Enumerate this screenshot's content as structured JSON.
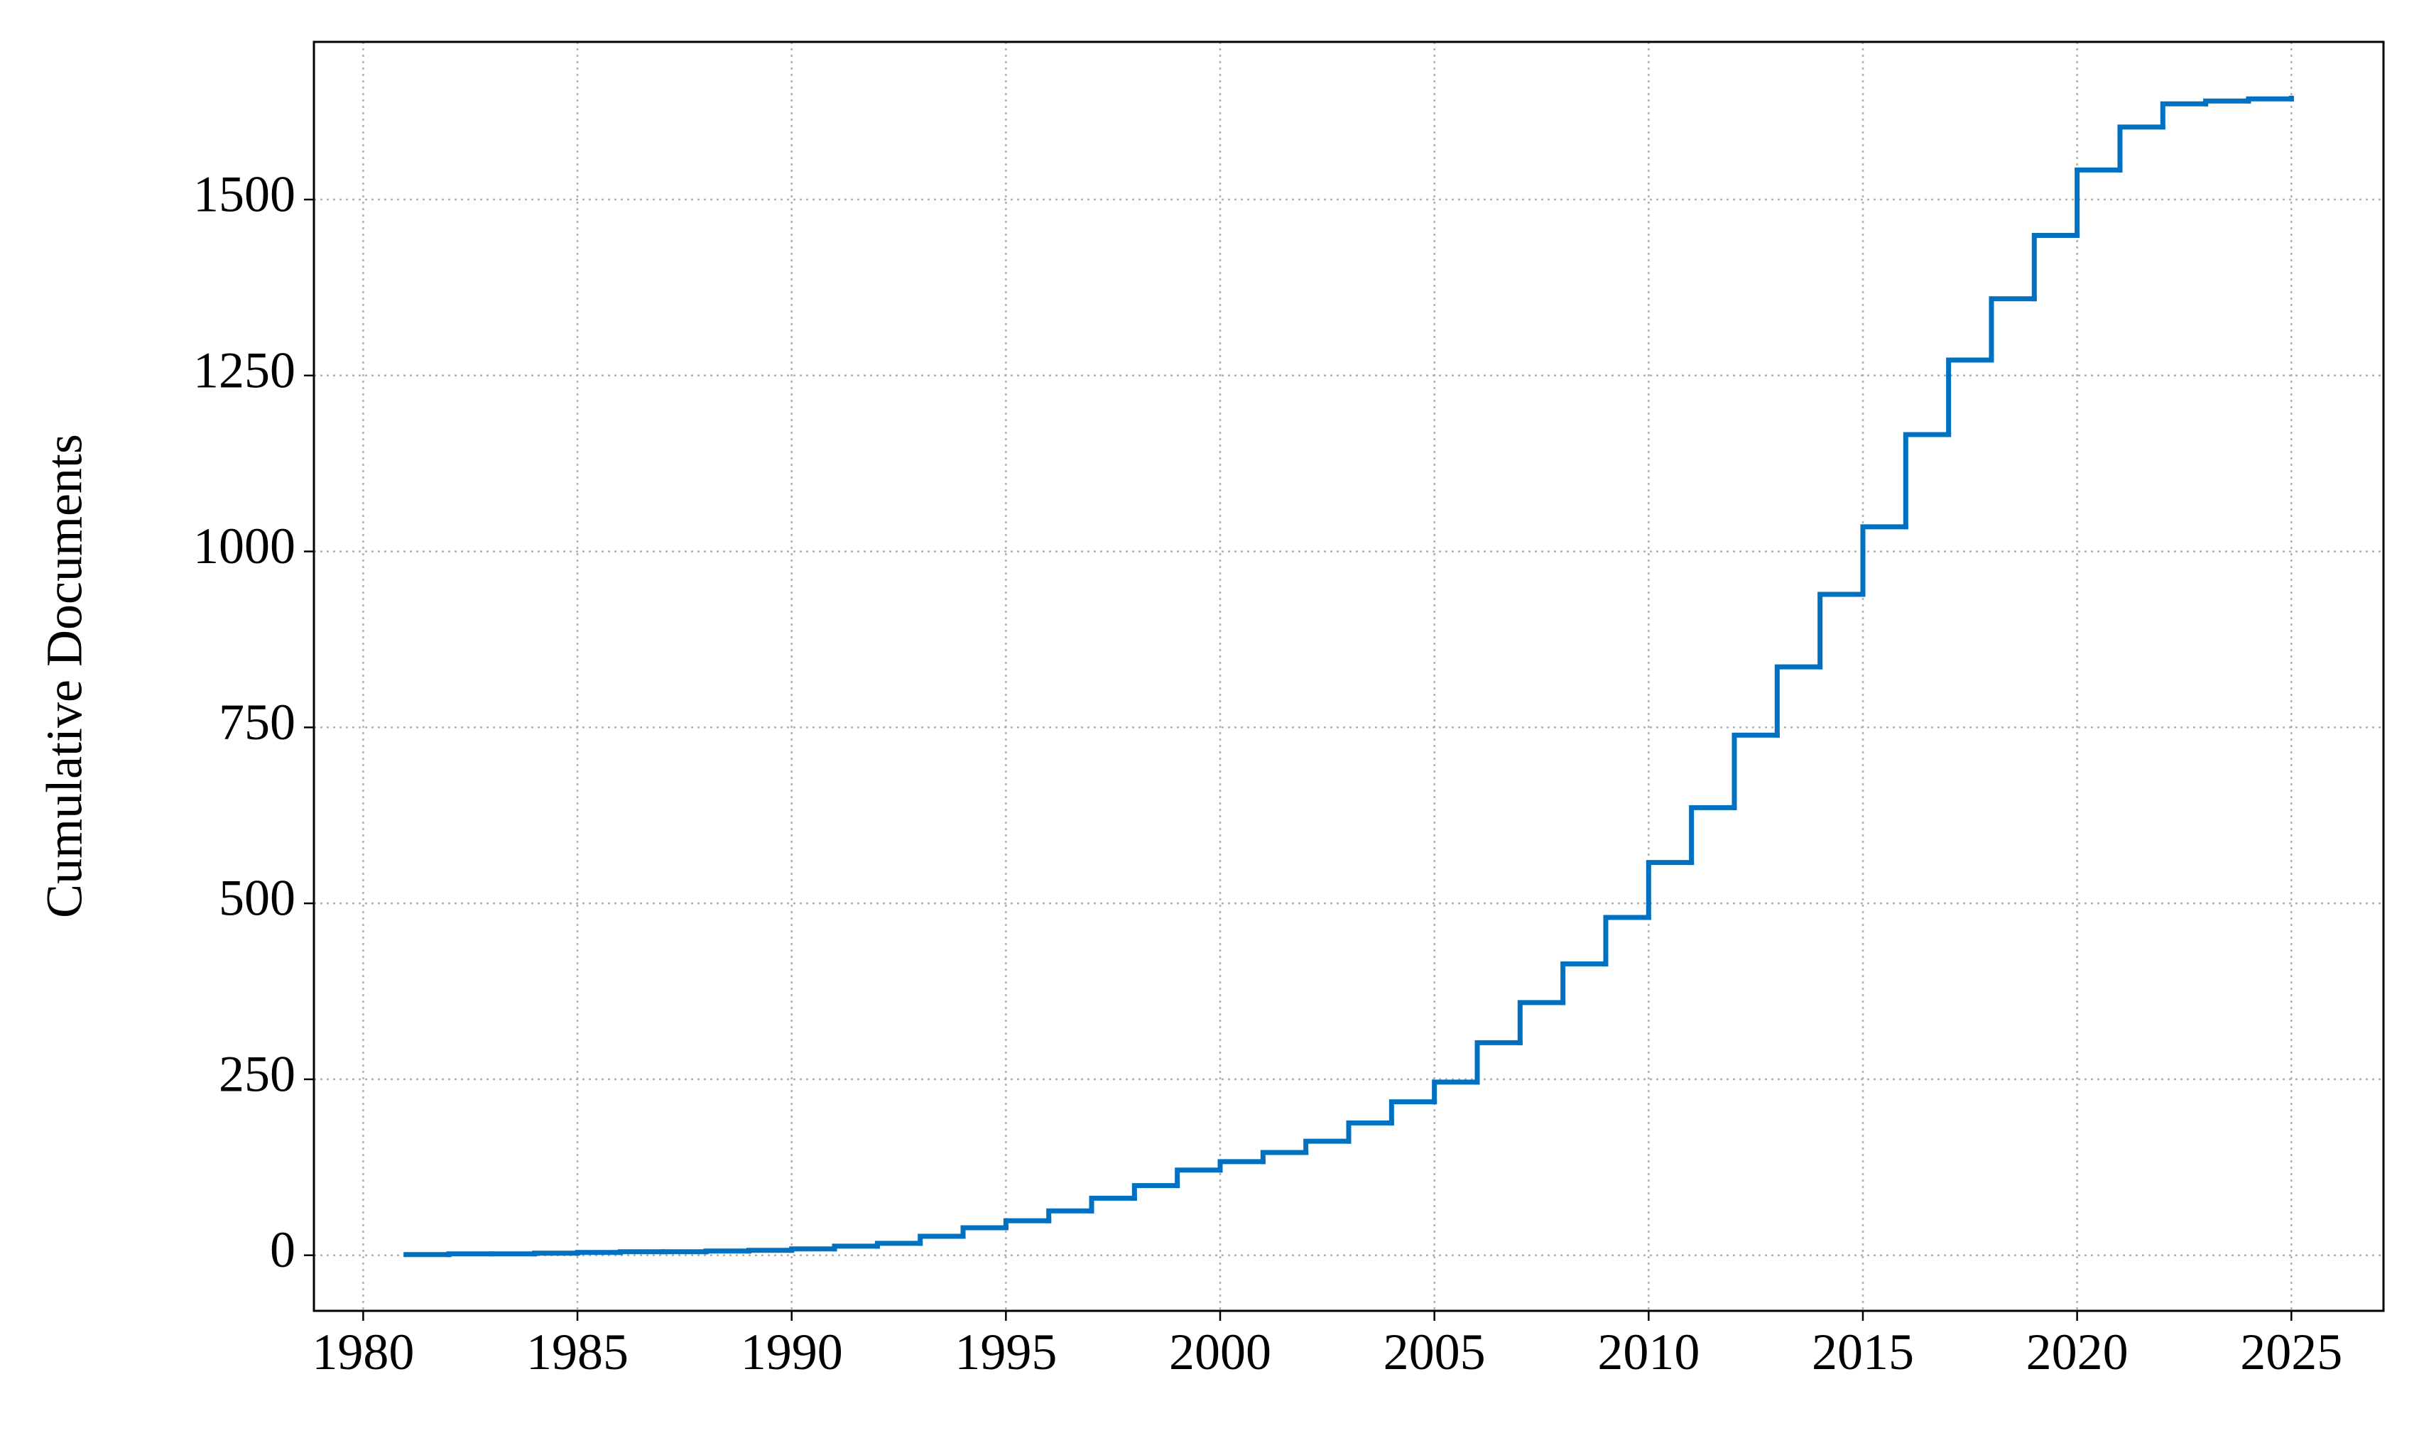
{
  "chart_data": {
    "type": "step",
    "y_label": "Cumulative Documents",
    "x": [
      1981,
      1982,
      1983,
      1984,
      1985,
      1986,
      1987,
      1988,
      1989,
      1990,
      1991,
      1992,
      1993,
      1994,
      1995,
      1996,
      1997,
      1998,
      1999,
      2000,
      2001,
      2002,
      2003,
      2004,
      2005,
      2006,
      2007,
      2008,
      2009,
      2010,
      2011,
      2012,
      2013,
      2014,
      2015,
      2016,
      2017,
      2018,
      2019,
      2020,
      2021,
      2022,
      2023,
      2024,
      2025
    ],
    "series": [
      {
        "name": "Cumulative Documents",
        "color": "#0070c0",
        "values": [
          1,
          2,
          2,
          3,
          4,
          5,
          5,
          6,
          7,
          9,
          13,
          17,
          27,
          39,
          49,
          63,
          81,
          99,
          121,
          133,
          146,
          162,
          188,
          218,
          246,
          302,
          359,
          414,
          480,
          558,
          636,
          739,
          836,
          939,
          1035,
          1166,
          1272,
          1359,
          1449,
          1542,
          1603,
          1636,
          1640,
          1643,
          1644
        ]
      }
    ],
    "xlim": [
      1978.85,
      2027.15
    ],
    "xticks": [
      1980,
      1985,
      1990,
      1995,
      2000,
      2005,
      2010,
      2015,
      2020,
      2025
    ],
    "ylim": [
      -79,
      1724
    ],
    "yticks": [
      0,
      250,
      500,
      750,
      1000,
      1250,
      1500
    ],
    "grid": true
  }
}
